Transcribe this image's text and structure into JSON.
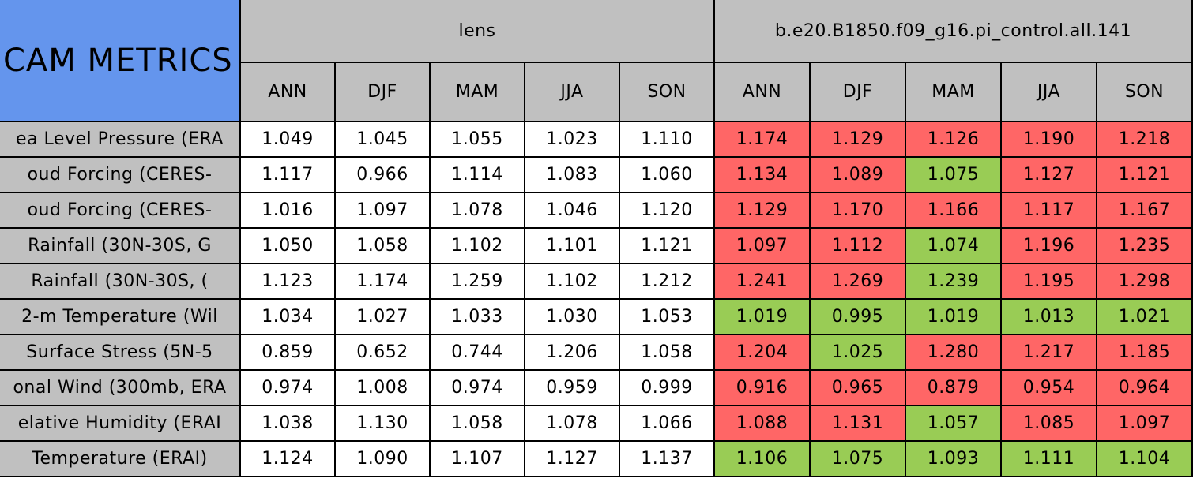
{
  "header": {
    "title": "CAM METRICS",
    "groups": [
      "lens",
      "b.e20.B1850.f09_g16.pi_control.all.141"
    ],
    "seasons": [
      "ANN",
      "DJF",
      "MAM",
      "JJA",
      "SON",
      "ANN",
      "DJF",
      "MAM",
      "JJA",
      "SON"
    ]
  },
  "colors": {
    "header": "#c0c0c0",
    "title": "#6495ed",
    "worse": "#ff6666",
    "better": "#99cc55",
    "plain": "#ffffff"
  },
  "rows": [
    {
      "label": "ea Level Pressure (ERA",
      "cells": [
        "1.049",
        "1.045",
        "1.055",
        "1.023",
        "1.110",
        "1.174",
        "1.129",
        "1.126",
        "1.190",
        "1.218"
      ],
      "shade": [
        "plain",
        "plain",
        "plain",
        "plain",
        "plain",
        "worse",
        "worse",
        "worse",
        "worse",
        "worse"
      ]
    },
    {
      "label": "oud Forcing (CERES-",
      "cells": [
        "1.117",
        "0.966",
        "1.114",
        "1.083",
        "1.060",
        "1.134",
        "1.089",
        "1.075",
        "1.127",
        "1.121"
      ],
      "shade": [
        "plain",
        "plain",
        "plain",
        "plain",
        "plain",
        "worse",
        "worse",
        "better",
        "worse",
        "worse"
      ]
    },
    {
      "label": "oud Forcing (CERES-",
      "cells": [
        "1.016",
        "1.097",
        "1.078",
        "1.046",
        "1.120",
        "1.129",
        "1.170",
        "1.166",
        "1.117",
        "1.167"
      ],
      "shade": [
        "plain",
        "plain",
        "plain",
        "plain",
        "plain",
        "worse",
        "worse",
        "worse",
        "worse",
        "worse"
      ]
    },
    {
      "label": "Rainfall (30N-30S, G",
      "cells": [
        "1.050",
        "1.058",
        "1.102",
        "1.101",
        "1.121",
        "1.097",
        "1.112",
        "1.074",
        "1.196",
        "1.235"
      ],
      "shade": [
        "plain",
        "plain",
        "plain",
        "plain",
        "plain",
        "worse",
        "worse",
        "better",
        "worse",
        "worse"
      ]
    },
    {
      "label": "Rainfall (30N-30S, (",
      "cells": [
        "1.123",
        "1.174",
        "1.259",
        "1.102",
        "1.212",
        "1.241",
        "1.269",
        "1.239",
        "1.195",
        "1.298"
      ],
      "shade": [
        "plain",
        "plain",
        "plain",
        "plain",
        "plain",
        "worse",
        "worse",
        "better",
        "worse",
        "worse"
      ]
    },
    {
      "label": "2-m Temperature (Wil",
      "cells": [
        "1.034",
        "1.027",
        "1.033",
        "1.030",
        "1.053",
        "1.019",
        "0.995",
        "1.019",
        "1.013",
        "1.021"
      ],
      "shade": [
        "plain",
        "plain",
        "plain",
        "plain",
        "plain",
        "better",
        "better",
        "better",
        "better",
        "better"
      ]
    },
    {
      "label": "Surface Stress (5N-5",
      "cells": [
        "0.859",
        "0.652",
        "0.744",
        "1.206",
        "1.058",
        "1.204",
        "1.025",
        "1.280",
        "1.217",
        "1.185"
      ],
      "shade": [
        "plain",
        "plain",
        "plain",
        "plain",
        "plain",
        "worse",
        "better",
        "worse",
        "worse",
        "worse"
      ]
    },
    {
      "label": "onal Wind (300mb, ERA",
      "cells": [
        "0.974",
        "1.008",
        "0.974",
        "0.959",
        "0.999",
        "0.916",
        "0.965",
        "0.879",
        "0.954",
        "0.964"
      ],
      "shade": [
        "plain",
        "plain",
        "plain",
        "plain",
        "plain",
        "worse",
        "worse",
        "worse",
        "worse",
        "worse"
      ]
    },
    {
      "label": "elative Humidity (ERAI",
      "cells": [
        "1.038",
        "1.130",
        "1.058",
        "1.078",
        "1.066",
        "1.088",
        "1.131",
        "1.057",
        "1.085",
        "1.097"
      ],
      "shade": [
        "plain",
        "plain",
        "plain",
        "plain",
        "plain",
        "worse",
        "worse",
        "better",
        "worse",
        "worse"
      ]
    },
    {
      "label": "Temperature (ERAI)",
      "cells": [
        "1.124",
        "1.090",
        "1.107",
        "1.127",
        "1.137",
        "1.106",
        "1.075",
        "1.093",
        "1.111",
        "1.104"
      ],
      "shade": [
        "plain",
        "plain",
        "plain",
        "plain",
        "plain",
        "better",
        "better",
        "better",
        "better",
        "better"
      ]
    }
  ]
}
